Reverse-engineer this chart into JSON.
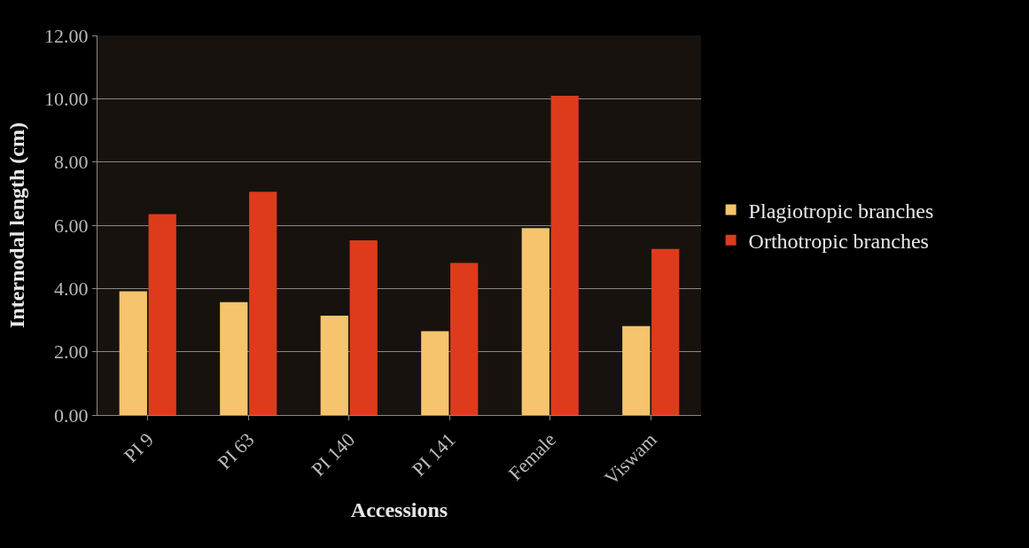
{
  "chart_data": {
    "type": "bar",
    "xlabel": "Accessions",
    "ylabel": "Internodal length (cm)",
    "categories": [
      "PI 9",
      "PI 63",
      "PI 140",
      "PI 141",
      "Female",
      "Viswam"
    ],
    "series": [
      {
        "name": "Plagiotropic branches",
        "color": "#f5c46c",
        "values": [
          3.91,
          3.57,
          3.14,
          2.65,
          5.91,
          2.81
        ]
      },
      {
        "name": "Orthotropic branches",
        "color": "#dd3b1c",
        "values": [
          6.35,
          7.06,
          5.52,
          4.81,
          10.09,
          5.25
        ]
      }
    ],
    "ylim": [
      0,
      12
    ],
    "yticks": [
      {
        "value": 0,
        "label": "0.00"
      },
      {
        "value": 2,
        "label": "2.00"
      },
      {
        "value": 4,
        "label": "4.00"
      },
      {
        "value": 6,
        "label": "6.00"
      },
      {
        "value": 8,
        "label": "8.00"
      },
      {
        "value": 10,
        "label": "10.00"
      },
      {
        "value": 12,
        "label": "12.00"
      }
    ],
    "grid": "y",
    "legend": "right"
  }
}
